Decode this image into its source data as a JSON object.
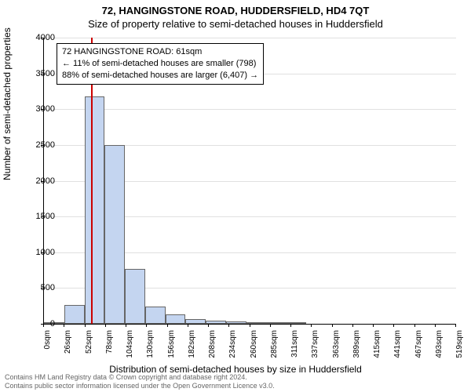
{
  "title": "72, HANGINGSTONE ROAD, HUDDERSFIELD, HD4 7QT",
  "subtitle": "Size of property relative to semi-detached houses in Huddersfield",
  "ylabel": "Number of semi-detached properties",
  "xlabel": "Distribution of semi-detached houses by size in Huddersfield",
  "footer_line1": "Contains HM Land Registry data © Crown copyright and database right 2024.",
  "footer_line2": "Contains public sector information licensed under the Open Government Licence v3.0.",
  "annotation": {
    "line1": "72 HANGINGSTONE ROAD: 61sqm",
    "line2": "← 11% of semi-detached houses are smaller (798)",
    "line3": "88% of semi-detached houses are larger (6,407) →"
  },
  "chart": {
    "type": "histogram",
    "background_color": "#ffffff",
    "grid_color": "#e0e0e0",
    "axis_color": "#000000",
    "bar_fill": "#c4d5f0",
    "bar_border": "#666666",
    "marker_color": "#cc0000",
    "marker_x": 61,
    "ylim": [
      0,
      4000
    ],
    "ytick_step": 500,
    "xlim": [
      0,
      530
    ],
    "x_categories": [
      "0sqm",
      "26sqm",
      "52sqm",
      "78sqm",
      "104sqm",
      "130sqm",
      "156sqm",
      "182sqm",
      "208sqm",
      "234sqm",
      "260sqm",
      "285sqm",
      "311sqm",
      "337sqm",
      "363sqm",
      "389sqm",
      "415sqm",
      "441sqm",
      "467sqm",
      "493sqm",
      "519sqm"
    ],
    "label_fontsize": 10,
    "axis_label_fontsize": 12,
    "title_fontsize": 13,
    "bars": [
      {
        "x0": 0,
        "x1": 26,
        "v": 20
      },
      {
        "x0": 26,
        "x1": 52,
        "v": 260
      },
      {
        "x0": 52,
        "x1": 78,
        "v": 3180
      },
      {
        "x0": 78,
        "x1": 104,
        "v": 2500
      },
      {
        "x0": 104,
        "x1": 130,
        "v": 770
      },
      {
        "x0": 130,
        "x1": 156,
        "v": 240
      },
      {
        "x0": 156,
        "x1": 182,
        "v": 130
      },
      {
        "x0": 182,
        "x1": 208,
        "v": 70
      },
      {
        "x0": 208,
        "x1": 234,
        "v": 40
      },
      {
        "x0": 234,
        "x1": 260,
        "v": 30
      },
      {
        "x0": 260,
        "x1": 285,
        "v": 20
      },
      {
        "x0": 285,
        "x1": 311,
        "v": 15
      },
      {
        "x0": 311,
        "x1": 337,
        "v": 25
      },
      {
        "x0": 337,
        "x1": 363,
        "v": 0
      },
      {
        "x0": 363,
        "x1": 389,
        "v": 0
      },
      {
        "x0": 389,
        "x1": 415,
        "v": 0
      },
      {
        "x0": 415,
        "x1": 441,
        "v": 0
      },
      {
        "x0": 441,
        "x1": 467,
        "v": 0
      },
      {
        "x0": 467,
        "x1": 493,
        "v": 0
      },
      {
        "x0": 493,
        "x1": 519,
        "v": 0
      }
    ]
  }
}
